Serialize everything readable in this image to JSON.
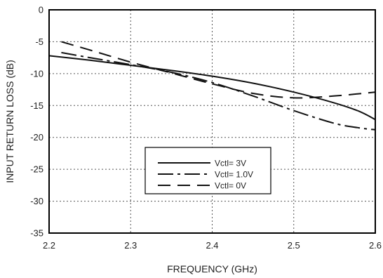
{
  "chart_data": {
    "type": "line",
    "title": "",
    "xlabel": "FREQUENCY (GHz)",
    "ylabel": "INPUT RETURN LOSS (dB)",
    "xlim": [
      2.2,
      2.6
    ],
    "ylim": [
      -35,
      0
    ],
    "x_ticks": [
      "2.2",
      "2.3",
      "2.4",
      "2.5",
      "2.6"
    ],
    "y_ticks": [
      "0",
      "-5",
      "-10",
      "-15",
      "-20",
      "-25",
      "-30",
      "-35"
    ],
    "grid": true,
    "legend_position": "lower-center",
    "series": [
      {
        "name": "Vctl= 3V",
        "dash": "solid",
        "x": [
          2.2,
          2.25,
          2.3,
          2.35,
          2.4,
          2.45,
          2.5,
          2.55,
          2.58,
          2.6
        ],
        "y": [
          -7.2,
          -7.9,
          -8.7,
          -9.5,
          -10.4,
          -11.5,
          -12.9,
          -14.6,
          -15.9,
          -17.2
        ]
      },
      {
        "name": "Vctl= 1.0V",
        "dash": "dash-dot",
        "x": [
          2.215,
          2.25,
          2.3,
          2.35,
          2.4,
          2.45,
          2.5,
          2.55,
          2.58,
          2.6
        ],
        "y": [
          -6.7,
          -7.5,
          -8.6,
          -9.8,
          -11.4,
          -13.5,
          -15.8,
          -17.8,
          -18.5,
          -18.8
        ]
      },
      {
        "name": "Vctl= 0V",
        "dash": "long-dash",
        "x": [
          2.215,
          2.25,
          2.3,
          2.35,
          2.4,
          2.45,
          2.5,
          2.55,
          2.6
        ],
        "y": [
          -5.0,
          -6.3,
          -8.2,
          -9.9,
          -11.6,
          -13.1,
          -13.8,
          -13.5,
          -12.9
        ]
      }
    ]
  }
}
